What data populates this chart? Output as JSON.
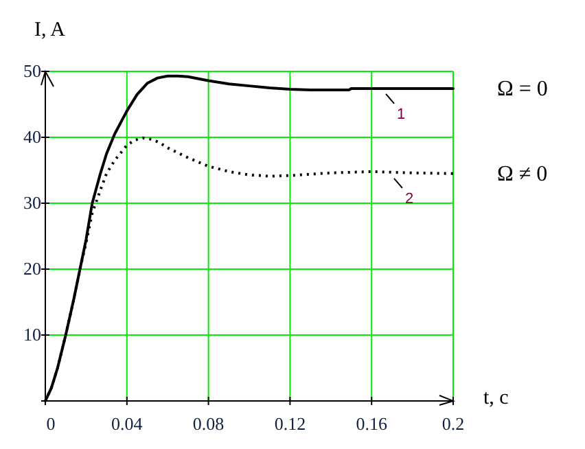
{
  "chart_data": {
    "type": "line",
    "xlabel": "t,  c",
    "ylabel": "I,  A",
    "xlim": [
      0,
      0.2
    ],
    "ylim": [
      0,
      50
    ],
    "xticks": [
      0,
      0.04,
      0.08,
      0.12,
      0.16,
      0.2
    ],
    "yticks": [
      {
        "value": 0,
        "label": null
      },
      10,
      20,
      30,
      40,
      50
    ],
    "grid": true,
    "legend": false,
    "marker": "none",
    "series": [
      {
        "name": "Ω  = 0",
        "color": "#000000",
        "line_style": "solid",
        "x": [
          0,
          0.003,
          0.006,
          0.01,
          0.014,
          0.017,
          0.02,
          0.023,
          0.027,
          0.03,
          0.034,
          0.04,
          0.045,
          0.05,
          0.055,
          0.06,
          0.065,
          0.07,
          0.08,
          0.09,
          0.1,
          0.11,
          0.12,
          0.13,
          0.14,
          0.149,
          0.15,
          0.16,
          0.18,
          0.2
        ],
        "values": [
          0,
          2,
          5,
          10,
          15.5,
          20,
          24.5,
          30,
          34.5,
          37.5,
          40.5,
          44,
          46.5,
          48.2,
          49,
          49.3,
          49.3,
          49.2,
          48.6,
          48.1,
          47.8,
          47.5,
          47.3,
          47.2,
          47.2,
          47.2,
          47.4,
          47.4,
          47.4,
          47.4
        ]
      },
      {
        "name": "Ω  ≠ 0",
        "color": "#000000",
        "line_style": "dotted",
        "x": [
          0,
          0.003,
          0.006,
          0.01,
          0.014,
          0.017,
          0.02,
          0.023,
          0.027,
          0.03,
          0.034,
          0.04,
          0.044,
          0.048,
          0.052,
          0.056,
          0.06,
          0.07,
          0.08,
          0.09,
          0.1,
          0.11,
          0.12,
          0.13,
          0.14,
          0.16,
          0.18,
          0.2
        ],
        "values": [
          0,
          2,
          5,
          10,
          15.5,
          20,
          24,
          28.5,
          32,
          34.5,
          36.5,
          38.8,
          39.6,
          39.9,
          39.7,
          39.2,
          38.4,
          36.9,
          35.6,
          34.8,
          34.3,
          34.1,
          34.2,
          34.4,
          34.6,
          34.8,
          34.6,
          34.5
        ]
      }
    ],
    "annotations": [
      {
        "text": "1",
        "x": 0.165,
        "y": 47.4
      },
      {
        "text": "2",
        "x": 0.169,
        "y": 34.6
      }
    ]
  }
}
